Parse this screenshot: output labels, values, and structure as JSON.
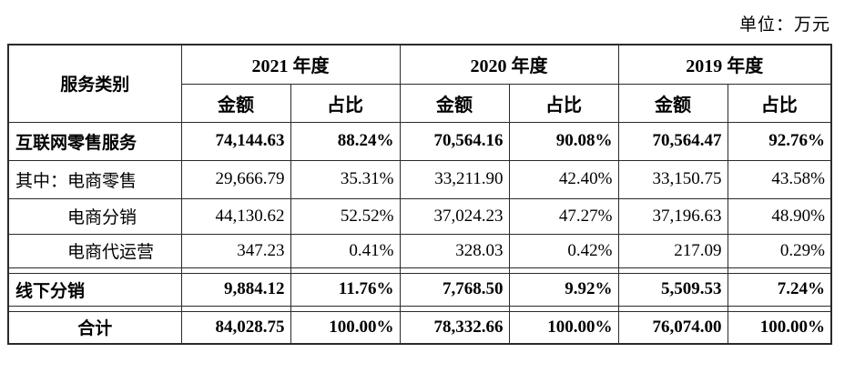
{
  "unit_label": "单位：万元",
  "table": {
    "category_header": "服务类别",
    "year_groups": [
      {
        "label": "2021 年度",
        "sub": [
          "金额",
          "占比"
        ]
      },
      {
        "label": "2020 年度",
        "sub": [
          "金额",
          "占比"
        ]
      },
      {
        "label": "2019 年度",
        "sub": [
          "金额",
          "占比"
        ]
      }
    ],
    "rows": [
      {
        "category": "互联网零售服务",
        "values": [
          "74,144.63",
          "88.24%",
          "70,564.16",
          "90.08%",
          "70,564.47",
          "92.76%"
        ],
        "bold": true,
        "indent": false,
        "center_label": false,
        "separator_above": false
      },
      {
        "category": "其中：电商零售",
        "values": [
          "29,666.79",
          "35.31%",
          "33,211.90",
          "42.40%",
          "33,150.75",
          "43.58%"
        ],
        "bold": false,
        "indent": false,
        "center_label": false,
        "separator_above": false
      },
      {
        "category": "电商分销",
        "values": [
          "44,130.62",
          "52.52%",
          "37,024.23",
          "47.27%",
          "37,196.63",
          "48.90%"
        ],
        "bold": false,
        "indent": true,
        "center_label": false,
        "separator_above": false
      },
      {
        "category": "电商代运营",
        "values": [
          "347.23",
          "0.41%",
          "328.03",
          "0.42%",
          "217.09",
          "0.29%"
        ],
        "bold": false,
        "indent": true,
        "center_label": false,
        "separator_above": false
      },
      {
        "category": "线下分销",
        "values": [
          "9,884.12",
          "11.76%",
          "7,768.50",
          "9.92%",
          "5,509.53",
          "7.24%"
        ],
        "bold": true,
        "indent": false,
        "center_label": false,
        "separator_above": true
      },
      {
        "category": "合计",
        "values": [
          "84,028.75",
          "100.00%",
          "78,332.66",
          "100.00%",
          "76,074.00",
          "100.00%"
        ],
        "bold": true,
        "indent": false,
        "center_label": true,
        "separator_above": true
      }
    ]
  }
}
